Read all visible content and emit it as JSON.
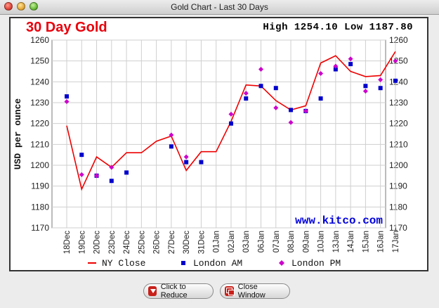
{
  "window": {
    "title": "Gold Chart - Last 30 Days"
  },
  "chart": {
    "title": "30 Day Gold",
    "high_low": "High 1254.10 Low 1187.80",
    "watermark": "www.kitco.com",
    "ylabel": "USD per ounce"
  },
  "buttons": {
    "reduce": "Click to Reduce",
    "close": "Close Window"
  },
  "colors": {
    "ny": "#ee0000",
    "am": "#0000cc",
    "pm": "#cc00cc",
    "title": "#e8000b"
  },
  "chart_data": {
    "type": "line",
    "ylabel": "USD per ounce",
    "ylim": [
      1170,
      1260
    ],
    "yticks": [
      1170,
      1180,
      1190,
      1200,
      1210,
      1220,
      1230,
      1240,
      1250,
      1260
    ],
    "grid": true,
    "legend_position": "bottom",
    "categories": [
      "18Dec",
      "19Dec",
      "20Dec",
      "23Dec",
      "24Dec",
      "25Dec",
      "26Dec",
      "27Dec",
      "30Dec",
      "31Dec",
      "01Jan",
      "02Jan",
      "03Jan",
      "06Jan",
      "07Jan",
      "08Jan",
      "09Jan",
      "10Jan",
      "13Jan",
      "14Jan",
      "15Jan",
      "16Jan",
      "17Jan"
    ],
    "series": [
      {
        "name": "NY Close",
        "kind": "line",
        "values": [
          1219,
          1188.5,
          1204,
          1199,
          1206,
          1206,
          1211.5,
          1214,
          1197.5,
          1206.5,
          1206.5,
          1221,
          1238.5,
          1238,
          1231,
          1226.5,
          1228.5,
          1249,
          1252.5,
          1245,
          1242.5,
          1243,
          1254.5
        ]
      },
      {
        "name": "London AM",
        "kind": "square",
        "values": [
          1233,
          1205,
          1195,
          1192.5,
          1196.5,
          null,
          null,
          1209,
          1201.5,
          1201.5,
          null,
          1220,
          1232,
          1238,
          1237,
          1226.5,
          1226,
          1232,
          1246,
          1248.5,
          1238,
          1237,
          1240.5
        ]
      },
      {
        "name": "London PM",
        "kind": "diamond",
        "values": [
          1230.5,
          1195.5,
          1195,
          1199,
          null,
          null,
          null,
          1214.5,
          1204,
          null,
          null,
          1224.5,
          1234.5,
          1246,
          1227.5,
          1220.5,
          1226,
          1244,
          1247.5,
          1251,
          1235.5,
          1241,
          1250
        ]
      }
    ]
  }
}
